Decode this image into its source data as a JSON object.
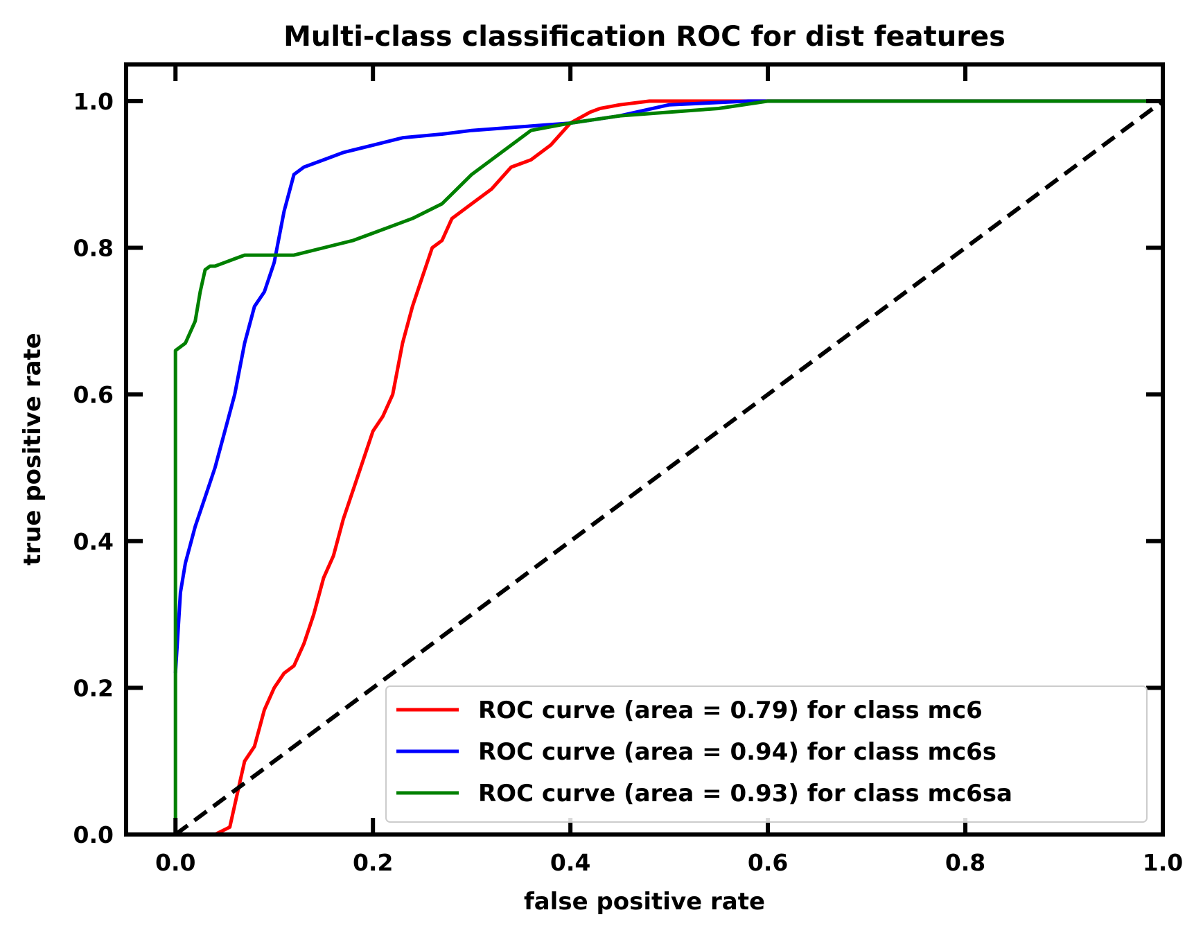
{
  "chart_data": {
    "type": "line",
    "title": "Multi-class classification ROC for dist features",
    "xlabel": "false positive rate",
    "ylabel": "true positive rate",
    "xlim": [
      -0.05,
      1.0
    ],
    "ylim": [
      0.0,
      1.05
    ],
    "xticks": [
      0.0,
      0.2,
      0.4,
      0.6,
      0.8,
      1.0
    ],
    "xtick_labels": [
      "0.0",
      "0.2",
      "0.4",
      "0.6",
      "0.8",
      "1.0"
    ],
    "yticks": [
      0.0,
      0.2,
      0.4,
      0.6,
      0.8,
      1.0
    ],
    "ytick_labels": [
      "0.0",
      "0.2",
      "0.4",
      "0.6",
      "0.8",
      "1.0"
    ],
    "grid": false,
    "legend_position": "lower-right",
    "series": [
      {
        "name": "ROC curve (area = 0.79) for class mc6",
        "color": "#ff0000",
        "x": [
          0.0,
          0.04,
          0.055,
          0.06,
          0.065,
          0.07,
          0.08,
          0.09,
          0.1,
          0.11,
          0.12,
          0.13,
          0.14,
          0.15,
          0.16,
          0.17,
          0.18,
          0.19,
          0.2,
          0.21,
          0.22,
          0.23,
          0.24,
          0.25,
          0.26,
          0.27,
          0.28,
          0.3,
          0.32,
          0.34,
          0.36,
          0.38,
          0.4,
          0.42,
          0.43,
          0.45,
          0.48,
          0.5,
          0.6,
          1.0
        ],
        "y": [
          0.0,
          0.0,
          0.01,
          0.04,
          0.07,
          0.1,
          0.12,
          0.17,
          0.2,
          0.22,
          0.23,
          0.26,
          0.3,
          0.35,
          0.38,
          0.43,
          0.47,
          0.51,
          0.55,
          0.57,
          0.6,
          0.67,
          0.72,
          0.76,
          0.8,
          0.81,
          0.84,
          0.86,
          0.88,
          0.91,
          0.92,
          0.94,
          0.97,
          0.985,
          0.99,
          0.995,
          1.0,
          1.0,
          1.0,
          1.0
        ]
      },
      {
        "name": "ROC curve (area = 0.94) for class mc6s",
        "color": "#0000ff",
        "x": [
          0.0,
          0.005,
          0.01,
          0.02,
          0.03,
          0.04,
          0.05,
          0.06,
          0.07,
          0.08,
          0.09,
          0.1,
          0.11,
          0.12,
          0.13,
          0.15,
          0.17,
          0.2,
          0.23,
          0.27,
          0.3,
          0.35,
          0.4,
          0.45,
          0.5,
          0.58,
          1.0
        ],
        "y": [
          0.22,
          0.33,
          0.37,
          0.42,
          0.46,
          0.5,
          0.55,
          0.6,
          0.67,
          0.72,
          0.74,
          0.78,
          0.85,
          0.9,
          0.91,
          0.92,
          0.93,
          0.94,
          0.95,
          0.955,
          0.96,
          0.965,
          0.97,
          0.98,
          0.995,
          1.0,
          1.0
        ]
      },
      {
        "name": "ROC curve (area = 0.93) for class mc6sa",
        "color": "#008000",
        "x": [
          0.0,
          0.0,
          0.01,
          0.02,
          0.025,
          0.03,
          0.035,
          0.04,
          0.05,
          0.06,
          0.07,
          0.08,
          0.12,
          0.15,
          0.18,
          0.2,
          0.22,
          0.24,
          0.27,
          0.3,
          0.33,
          0.36,
          0.4,
          0.45,
          0.55,
          0.6,
          1.0
        ],
        "y": [
          0.0,
          0.66,
          0.67,
          0.7,
          0.74,
          0.77,
          0.775,
          0.775,
          0.78,
          0.785,
          0.79,
          0.79,
          0.79,
          0.8,
          0.81,
          0.82,
          0.83,
          0.84,
          0.86,
          0.9,
          0.93,
          0.96,
          0.97,
          0.98,
          0.99,
          1.0,
          1.0
        ]
      },
      {
        "name": "",
        "color": "#000000",
        "dashed": true,
        "x": [
          0.0,
          1.0
        ],
        "y": [
          0.0,
          1.0
        ]
      }
    ]
  }
}
